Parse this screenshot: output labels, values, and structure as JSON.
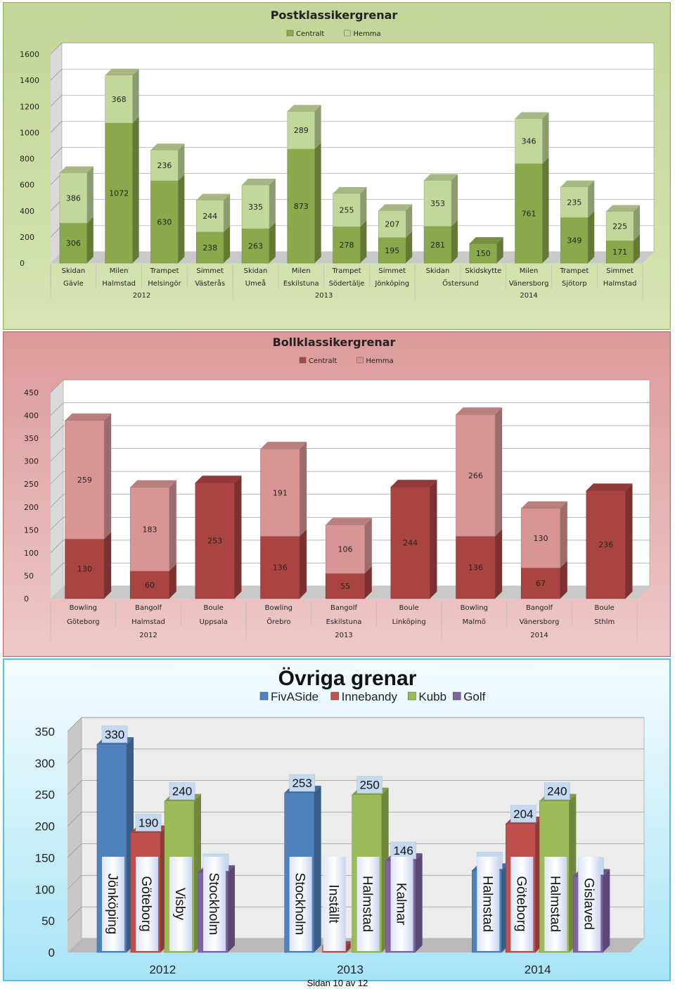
{
  "footer": "Sidan 10 av 12",
  "chart_data": [
    {
      "type": "bar",
      "stacked": true,
      "title": "Postklassikergrenar",
      "legend": [
        "Centralt",
        "Hemma"
      ],
      "legend_position": "top",
      "ylim": [
        0,
        1600
      ],
      "yticks": [
        "0",
        "200",
        "400",
        "600",
        "800",
        "1000",
        "1200",
        "1400",
        "1600"
      ],
      "categories": [
        {
          "event": "Skidan",
          "place": "Gävle"
        },
        {
          "event": "Milen",
          "place": "Halmstad"
        },
        {
          "event": "Trampet",
          "place": "Helsingör"
        },
        {
          "event": "Simmet",
          "place": "Västerås"
        },
        {
          "event": "Skidan",
          "place": "Umeå"
        },
        {
          "event": "Milen",
          "place": "Eskilstuna"
        },
        {
          "event": "Trampet",
          "place": "Södertälje"
        },
        {
          "event": "Simmet",
          "place": "Jönköping"
        },
        {
          "event": "Skidan",
          "place": ""
        },
        {
          "event": "Skidskytte",
          "place": ""
        },
        {
          "event": "Milen",
          "place": "Vänersborg"
        },
        {
          "event": "Trampet",
          "place": "Sjötorp"
        },
        {
          "event": "Simmet",
          "place": "Halmstad"
        }
      ],
      "shared_places": [
        {
          "label": "Östersund",
          "from": 8,
          "to": 9
        }
      ],
      "year_groups": [
        {
          "label": "2012",
          "from": 0,
          "to": 3
        },
        {
          "label": "2013",
          "from": 4,
          "to": 7
        },
        {
          "label": "2014",
          "from": 8,
          "to": 12
        }
      ],
      "series": [
        {
          "name": "Centralt",
          "values": [
            306,
            1072,
            630,
            238,
            263,
            873,
            278,
            195,
            281,
            150,
            761,
            349,
            171
          ]
        },
        {
          "name": "Hemma",
          "values": [
            386,
            368,
            236,
            244,
            335,
            289,
            255,
            207,
            353,
            null,
            346,
            235,
            225
          ]
        }
      ],
      "colors": {
        "bg": "#d7e4b3",
        "bg_top": "#c3d597",
        "plot": "#ffffff",
        "side": "#d9d9d9",
        "floor": "#c9c9c9",
        "series": [
          "#8aa94b",
          "#c4d79b"
        ],
        "border": "#9bb55d"
      }
    },
    {
      "type": "bar",
      "stacked": true,
      "title": "Bollklassikergrenar",
      "legend": [
        "Centralt",
        "Hemma"
      ],
      "legend_position": "top",
      "ylim": [
        0,
        450
      ],
      "yticks": [
        "0",
        "50",
        "100",
        "150",
        "200",
        "250",
        "300",
        "350",
        "400",
        "450"
      ],
      "categories": [
        {
          "event": "Bowling",
          "place": "Göteborg"
        },
        {
          "event": "Bangolf",
          "place": "Halmstad"
        },
        {
          "event": "Boule",
          "place": "Uppsala"
        },
        {
          "event": "Bowling",
          "place": "Örebro"
        },
        {
          "event": "Bangolf",
          "place": "Eskilstuna"
        },
        {
          "event": "Boule",
          "place": "Linköping"
        },
        {
          "event": "Bowling",
          "place": "Malmö"
        },
        {
          "event": "Bangolf",
          "place": "Vänersborg"
        },
        {
          "event": "Boule",
          "place": "Sthlm"
        }
      ],
      "year_groups": [
        {
          "label": "2012",
          "from": 0,
          "to": 2
        },
        {
          "label": "2013",
          "from": 3,
          "to": 5
        },
        {
          "label": "2014",
          "from": 6,
          "to": 8
        }
      ],
      "series": [
        {
          "name": "Centralt",
          "values": [
            130,
            60,
            253,
            136,
            55,
            244,
            136,
            67,
            236
          ]
        },
        {
          "name": "Hemma",
          "values": [
            259,
            183,
            null,
            191,
            106,
            null,
            266,
            130,
            null
          ]
        }
      ],
      "colors": {
        "bg": "#eec9c9",
        "bg_top": "#dc9a9a",
        "plot": "#ffffff",
        "side": "#d9d9d9",
        "floor": "#c9c9c9",
        "series": [
          "#aa4443",
          "#d99594"
        ],
        "border": "#c07070"
      }
    },
    {
      "type": "bar",
      "title": "Övriga grenar",
      "legend": [
        "FivASide",
        "Innebandy",
        "Kubb",
        "Golf"
      ],
      "legend_position": "top",
      "ylim": [
        0,
        350
      ],
      "yticks": [
        "0",
        "50",
        "100",
        "150",
        "200",
        "250",
        "300",
        "350"
      ],
      "categories": [
        "2012",
        "2013",
        "2014"
      ],
      "series": [
        {
          "name": "FivASide",
          "values": [
            330,
            253,
            130
          ],
          "places": [
            "Jönköping",
            "Stockholm",
            "Halmstad"
          ]
        },
        {
          "name": "Innebandy",
          "values": [
            190,
            0,
            204
          ],
          "places": [
            "Göteborg",
            "Inställt",
            "Göteborg"
          ]
        },
        {
          "name": "Kubb",
          "values": [
            240,
            250,
            240
          ],
          "places": [
            "Visby",
            "Halmstad",
            "Halmstad"
          ]
        },
        {
          "name": "Golf",
          "values": [
            127,
            146,
            121
          ],
          "places": [
            "Stockholm",
            "Kalmar",
            "Gislaved"
          ]
        }
      ],
      "colors": {
        "bg": "#e3f6fc",
        "bg_top": "#f5fcfe",
        "plot": "#ececec",
        "side": "#c8c8c8",
        "floor": "#b9b9b9",
        "series": [
          "#4f81bd",
          "#c0504d",
          "#9bbb59",
          "#8064a2"
        ],
        "border": "#5bc0de"
      }
    }
  ]
}
